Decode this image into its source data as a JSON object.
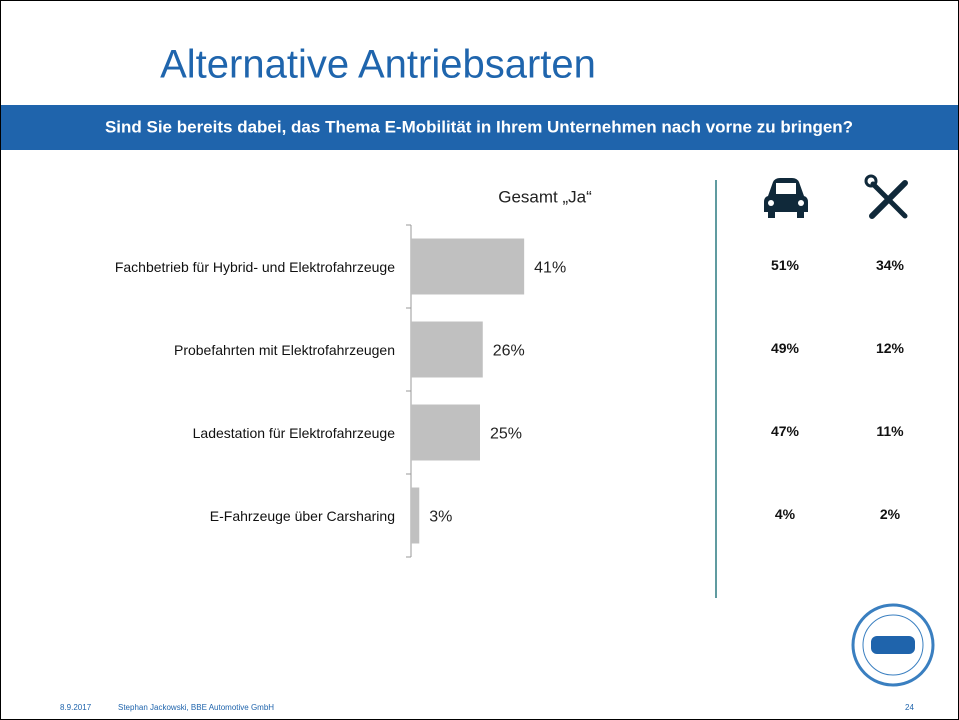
{
  "title": "Alternative Antriebsarten",
  "question": "Sind Sie bereits dabei, das Thema E-Mobilität in Ihrem Unternehmen nach vorne zu bringen?",
  "chart_data": {
    "type": "barh",
    "subtitle": "Gesamt „Ja“",
    "categories": [
      "Fachbetrieb für Hybrid- und Elektrofahrzeuge",
      "Probefahrten mit Elektrofahrzeugen",
      "Ladestation für Elektrofahrzeuge",
      "E-Fahrzeuge über Carsharing"
    ],
    "values": [
      41,
      26,
      25,
      3
    ],
    "value_labels": [
      "41%",
      "26%",
      "25%",
      "3%"
    ],
    "color": "#c0c0c0",
    "xlim": [
      0,
      100
    ]
  },
  "table": {
    "rows": [
      [
        "51%",
        "34%"
      ],
      [
        "49%",
        "12%"
      ],
      [
        "47%",
        "11%"
      ],
      [
        "4%",
        "2%"
      ]
    ]
  },
  "footer": {
    "date": "8.9.2017",
    "author": "Stephan Jackowski, BBE Automotive GmbH",
    "page": "24"
  }
}
